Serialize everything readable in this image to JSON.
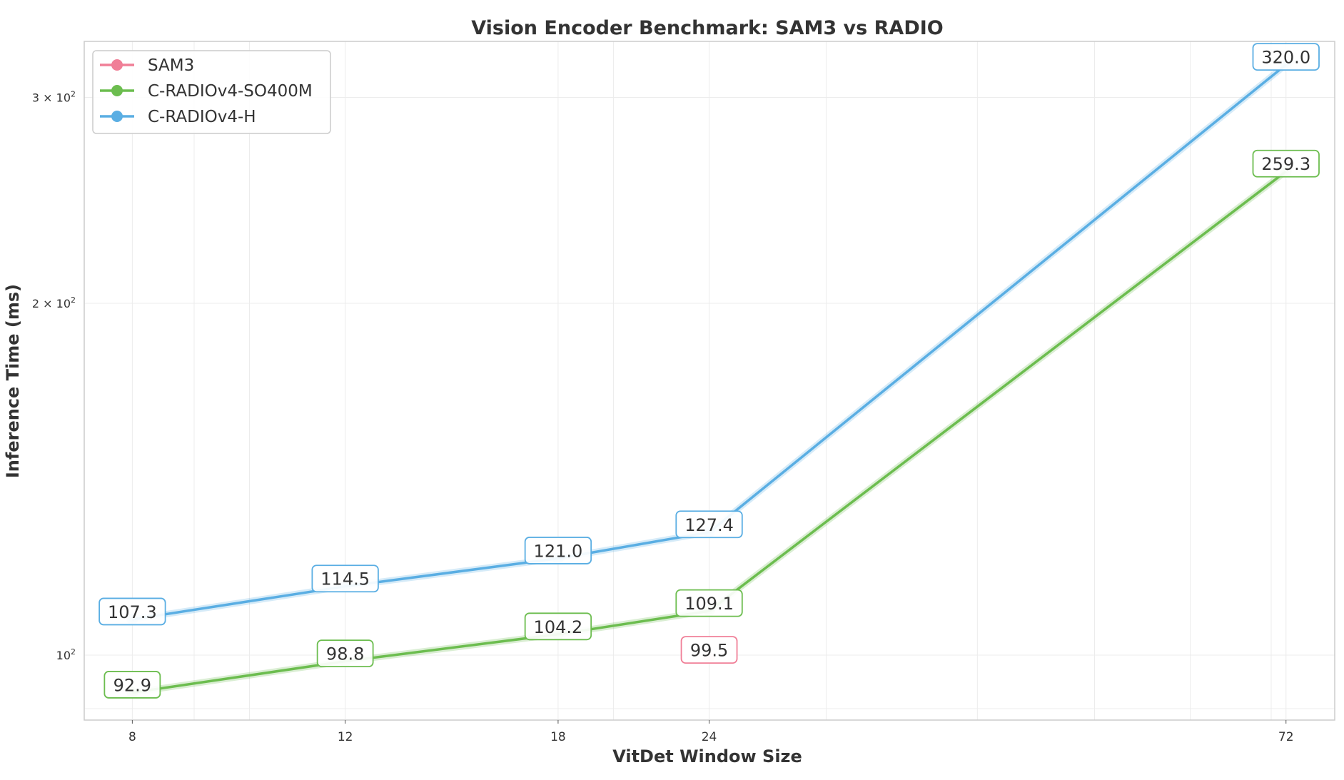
{
  "chart_data": {
    "type": "line",
    "title": "Vision Encoder Benchmark: SAM3 vs RADIO",
    "xlabel": "VitDet Window Size",
    "ylabel": "Inference Time (ms)",
    "x_scale": "log",
    "y_scale": "log",
    "xlim": [
      7.3,
      79
    ],
    "ylim": [
      88,
      335
    ],
    "x_ticks": [
      {
        "value": 8,
        "label": "8"
      },
      {
        "value": 12,
        "label": "12"
      },
      {
        "value": 18,
        "label": "18"
      },
      {
        "value": 24,
        "label": "24"
      },
      {
        "value": 72,
        "label": "72"
      }
    ],
    "y_ticks": [
      {
        "value": 100,
        "label": "10^2"
      },
      {
        "value": 200,
        "label": "2×10^2"
      },
      {
        "value": 300,
        "label": "3×10^2"
      }
    ],
    "grid": true,
    "legend_position": "top-left",
    "series": [
      {
        "name": "SAM3",
        "color": "#f07f97",
        "points": [
          {
            "x": 24,
            "y": 99.5,
            "label": "99.5"
          }
        ]
      },
      {
        "name": "C-RADIOv4-SO400M",
        "color": "#6cbd4f",
        "points": [
          {
            "x": 8,
            "y": 92.9,
            "label": "92.9"
          },
          {
            "x": 12,
            "y": 98.8,
            "label": "98.8"
          },
          {
            "x": 18,
            "y": 104.2,
            "label": "104.2"
          },
          {
            "x": 24,
            "y": 109.1,
            "label": "109.1"
          },
          {
            "x": 72,
            "y": 259.3,
            "label": "259.3"
          }
        ]
      },
      {
        "name": "C-RADIOv4-H",
        "color": "#5aaee3",
        "points": [
          {
            "x": 8,
            "y": 107.3,
            "label": "107.3"
          },
          {
            "x": 12,
            "y": 114.5,
            "label": "114.5"
          },
          {
            "x": 18,
            "y": 121.0,
            "label": "121.0"
          },
          {
            "x": 24,
            "y": 127.4,
            "label": "127.4"
          },
          {
            "x": 72,
            "y": 320.0,
            "label": "320.0"
          }
        ]
      }
    ]
  }
}
